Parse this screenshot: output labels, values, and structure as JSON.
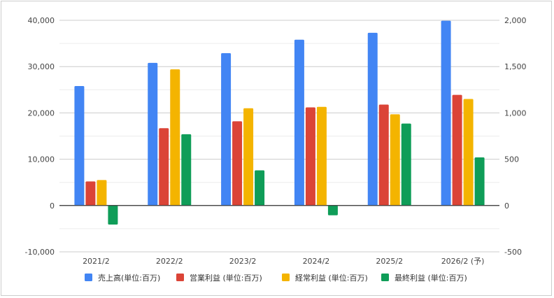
{
  "chart_data": {
    "type": "bar",
    "categories": [
      "2021/2",
      "2022/2",
      "2023/2",
      "2024/2",
      "2025/2",
      "2026/2 (予)"
    ],
    "series": [
      {
        "name": "売上高(単位:百万)",
        "axis": "left",
        "color": "#4285f4",
        "values": [
          25800,
          30800,
          32900,
          35800,
          37300,
          39900
        ]
      },
      {
        "name": "営業利益 (単位:百万)",
        "axis": "right",
        "color": "#db4437",
        "values": [
          260,
          835,
          910,
          1060,
          1090,
          1195
        ]
      },
      {
        "name": "経常利益 (単位:百万)",
        "axis": "right",
        "color": "#f4b400",
        "values": [
          275,
          1470,
          1050,
          1065,
          985,
          1150
        ]
      },
      {
        "name": "最終利益 (単位:百万)",
        "axis": "right",
        "color": "#0f9d58",
        "values": [
          -205,
          770,
          380,
          -105,
          885,
          520
        ]
      }
    ],
    "y_left": {
      "min": -10000,
      "max": 40000,
      "ticks": [
        "-10,000",
        "0",
        "10,000",
        "20,000",
        "30,000",
        "40,000"
      ]
    },
    "y_right": {
      "min": -500,
      "max": 2000,
      "ticks": [
        "-500",
        "0",
        "500",
        "1,000",
        "1,500",
        "2,000"
      ]
    },
    "grid": true,
    "legend_position": "bottom"
  }
}
